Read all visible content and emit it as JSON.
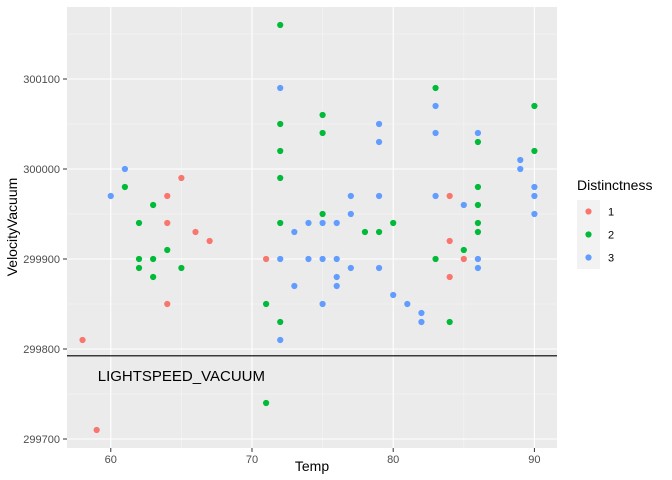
{
  "chart_data": {
    "type": "scatter",
    "xlabel": "Temp",
    "ylabel": "VelocityVacuum",
    "xlim": [
      56.9,
      91.6
    ],
    "ylim": [
      299690,
      300180
    ],
    "x_ticks": [
      60,
      70,
      80,
      90
    ],
    "y_ticks": [
      299700,
      299800,
      299900,
      300000,
      300100
    ],
    "grid": true,
    "legend": {
      "title": "Distinctness",
      "position": "right"
    },
    "series": [
      {
        "name": "1",
        "color": "#F8766D",
        "points": [
          [
            58,
            299810
          ],
          [
            59,
            299710
          ],
          [
            64,
            299970
          ],
          [
            64,
            299940
          ],
          [
            64,
            299850
          ],
          [
            65,
            299990
          ],
          [
            66,
            299930
          ],
          [
            67,
            299920
          ],
          [
            71,
            299900
          ],
          [
            84,
            299970
          ],
          [
            84,
            299920
          ],
          [
            84,
            299880
          ],
          [
            85,
            299900
          ]
        ]
      },
      {
        "name": "2",
        "color": "#00BA38",
        "points": [
          [
            61,
            299980
          ],
          [
            62,
            299940
          ],
          [
            62,
            299900
          ],
          [
            62,
            299890
          ],
          [
            63,
            299960
          ],
          [
            63,
            299900
          ],
          [
            63,
            299880
          ],
          [
            64,
            299910
          ],
          [
            65,
            299890
          ],
          [
            71,
            299850
          ],
          [
            71,
            299740
          ],
          [
            72,
            300160
          ],
          [
            72,
            300050
          ],
          [
            72,
            300020
          ],
          [
            72,
            299990
          ],
          [
            72,
            299940
          ],
          [
            72,
            299830
          ],
          [
            75,
            300060
          ],
          [
            75,
            300040
          ],
          [
            75,
            299950
          ],
          [
            78,
            299930
          ],
          [
            79,
            299930
          ],
          [
            80,
            299940
          ],
          [
            83,
            300090
          ],
          [
            83,
            299900
          ],
          [
            84,
            299830
          ],
          [
            85,
            299910
          ],
          [
            86,
            300030
          ],
          [
            86,
            299980
          ],
          [
            86,
            299960
          ],
          [
            86,
            299940
          ],
          [
            86,
            299930
          ],
          [
            90,
            300070
          ],
          [
            90,
            300020
          ]
        ]
      },
      {
        "name": "3",
        "color": "#619CFF",
        "points": [
          [
            60,
            299970
          ],
          [
            61,
            300000
          ],
          [
            72,
            300090
          ],
          [
            72,
            299900
          ],
          [
            72,
            299810
          ],
          [
            73,
            299930
          ],
          [
            73,
            299870
          ],
          [
            74,
            299940
          ],
          [
            74,
            299900
          ],
          [
            75,
            299940
          ],
          [
            75,
            299900
          ],
          [
            75,
            299850
          ],
          [
            76,
            299940
          ],
          [
            76,
            299900
          ],
          [
            76,
            299880
          ],
          [
            76,
            299870
          ],
          [
            77,
            299970
          ],
          [
            77,
            299950
          ],
          [
            77,
            299890
          ],
          [
            79,
            300050
          ],
          [
            79,
            300030
          ],
          [
            79,
            299970
          ],
          [
            79,
            299890
          ],
          [
            80,
            299860
          ],
          [
            81,
            299850
          ],
          [
            82,
            299840
          ],
          [
            82,
            299830
          ],
          [
            83,
            300070
          ],
          [
            83,
            300040
          ],
          [
            83,
            299970
          ],
          [
            85,
            299960
          ],
          [
            86,
            300040
          ],
          [
            86,
            299900
          ],
          [
            86,
            299890
          ],
          [
            89,
            300010
          ],
          [
            89,
            300000
          ],
          [
            90,
            299980
          ],
          [
            90,
            299970
          ],
          [
            90,
            299950
          ]
        ]
      }
    ],
    "hline": {
      "y": 299792.458,
      "label": "LIGHTSPEED_VACUUM",
      "label_x": 65,
      "label_y": 299770
    }
  }
}
